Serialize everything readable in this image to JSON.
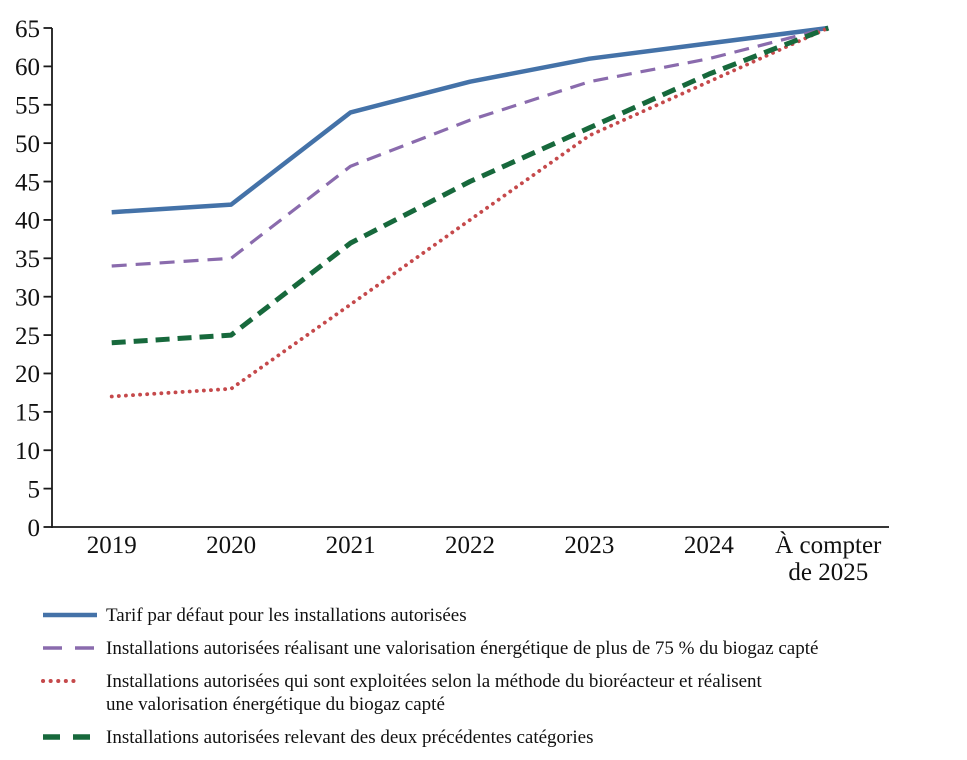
{
  "chart_data": {
    "type": "line",
    "categories": [
      "2019",
      "2020",
      "2021",
      "2022",
      "2023",
      "2024",
      "À compter\nde 2025"
    ],
    "ylim": [
      0,
      65
    ],
    "ytick_step": 5,
    "ytick_labels": [
      "0",
      "5",
      "10",
      "15",
      "20",
      "25",
      "30",
      "35",
      "40",
      "45",
      "50",
      "55",
      "60",
      "65"
    ],
    "grid": false,
    "legend_position": "bottom",
    "axis_color": "#1a1a1a",
    "series": [
      {
        "name": "Tarif par défaut pour les installations autorisées",
        "color": "#4472A8",
        "style": "solid",
        "values": [
          41,
          42,
          54,
          58,
          61,
          63,
          65
        ]
      },
      {
        "name": "Installations autorisées réalisant une valorisation énergétique de plus de 75 % du biogaz capté",
        "color": "#8A6BAD",
        "style": "dashed",
        "values": [
          34,
          35,
          47,
          53,
          58,
          61,
          65
        ]
      },
      {
        "name": "Installations autorisées qui sont exploitées selon la méthode du bioréacteur et réalisent\nune valorisation énergétique du biogaz capté",
        "color": "#C5494B",
        "style": "dotted",
        "values": [
          17,
          18,
          29,
          40,
          51,
          58,
          65
        ]
      },
      {
        "name": "Installations autorisées relevant des deux précédentes catégories",
        "color": "#17693C",
        "style": "dashed-bold",
        "values": [
          24,
          25,
          37,
          45,
          52,
          59,
          65
        ]
      }
    ]
  }
}
